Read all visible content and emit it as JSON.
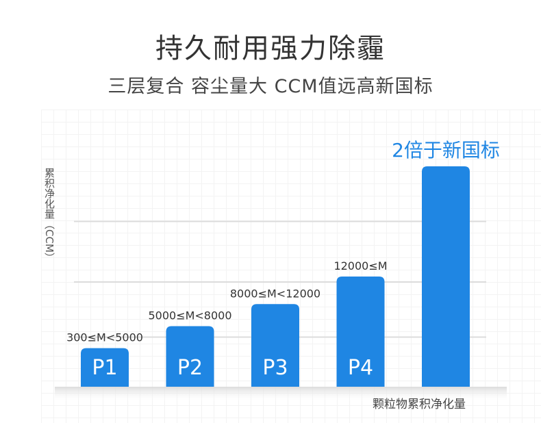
{
  "header": {
    "title": "持久耐用强力除霾",
    "subtitle": "三层复合 容尘量大 CCM值远高新国标"
  },
  "colors": {
    "bar": "#1f86e3",
    "callout": "#1f86e3",
    "text": "#333333"
  },
  "chart_data": {
    "type": "bar",
    "categories": [
      "P1",
      "P2",
      "P3",
      "P4",
      ""
    ],
    "bar_labels": [
      "300≤M<5000",
      "5000≤M<8000",
      "8000≤M<12000",
      "12000≤M",
      "2倍于新国标"
    ],
    "values": [
      3.5,
      5.5,
      7.5,
      10.0,
      20.0
    ],
    "ylabel": "累积净化量（CCM）",
    "xlabel": "颗粒物累积净化量",
    "grid_levels": [
      4.5,
      9.5,
      15.0
    ],
    "ylim": [
      0,
      20
    ],
    "highlight_index": 4,
    "grid": true,
    "y_ticks_shown": false
  }
}
